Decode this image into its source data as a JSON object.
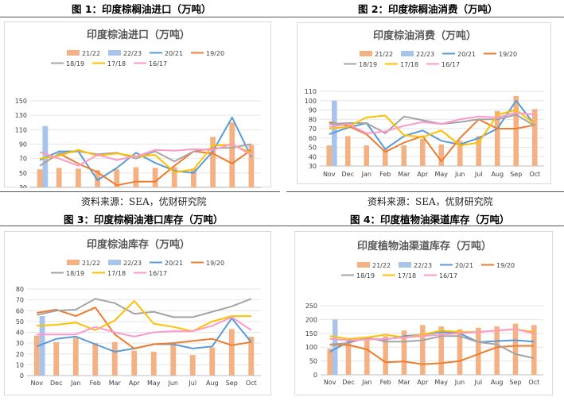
{
  "captions": {
    "fig1": "图 1：印度棕榈油进口（万吨）",
    "fig2": "图 2：印度棕榈油消费（万吨）",
    "fig3": "图 3：印度棕榈油港口库存（万吨）",
    "fig4": "图 4：印度植物油渠道库存（万吨）"
  },
  "sources": {
    "top_left": "资料来源：SEA，优财研究院",
    "top_right": "资料来源：SEA，优财研究院"
  },
  "chart_data": [
    {
      "type": "bar+line",
      "title": "印度棕油进口（万吨）",
      "categories": [
        "Nov",
        "Dec",
        "Jan",
        "Feb",
        "Mar",
        "Apr",
        "May",
        "Jun",
        "Jul",
        "Aug",
        "Sep",
        "Oct"
      ],
      "ylim": [
        30,
        150
      ],
      "yticks": [
        30,
        50,
        70,
        90,
        110,
        130,
        150
      ],
      "bars": [
        {
          "name": "21/22",
          "color": "#F4B183",
          "values": [
            55,
            57,
            56,
            54,
            55,
            58,
            57,
            58,
            56,
            100,
            120,
            89
          ]
        },
        {
          "name": "22/23",
          "color": "#A9C4EB",
          "values": [
            115,
            null,
            null,
            null,
            null,
            null,
            null,
            null,
            null,
            null,
            null,
            null
          ]
        }
      ],
      "lines": [
        {
          "name": "20/21",
          "color": "#5B9BD5",
          "values": [
            68,
            80,
            80,
            40,
            57,
            78,
            64,
            53,
            50,
            80,
            127,
            72
          ]
        },
        {
          "name": "19/20",
          "color": "#ED7D31",
          "values": [
            60,
            77,
            63,
            51,
            33,
            38,
            38,
            60,
            80,
            77,
            63,
            82
          ]
        },
        {
          "name": "18/19",
          "color": "#A5A5A5",
          "values": [
            60,
            77,
            80,
            76,
            78,
            70,
            80,
            66,
            80,
            84,
            85,
            90
          ]
        },
        {
          "name": "17/18",
          "color": "#FFC000",
          "values": [
            70,
            74,
            82,
            74,
            77,
            73,
            75,
            51,
            55,
            88,
            89,
            78
          ]
        },
        {
          "name": "16/17",
          "color": "#FF99CC",
          "values": [
            79,
            70,
            60,
            75,
            68,
            73,
            82,
            81,
            83,
            82,
            90,
            75
          ]
        }
      ]
    },
    {
      "type": "bar+line",
      "title": "印度棕油消费（万吨）",
      "categories": [
        "Nov",
        "Dec",
        "Jan",
        "Feb",
        "Mar",
        "Apr",
        "May",
        "Jun",
        "Jul",
        "Aug",
        "Sep",
        "Oct"
      ],
      "ylim": [
        30,
        110
      ],
      "yticks": [
        30,
        40,
        50,
        60,
        70,
        80,
        90,
        100,
        110
      ],
      "bars": [
        {
          "name": "21/22",
          "color": "#F4B183",
          "values": [
            52,
            62,
            52,
            48,
            52,
            59,
            53,
            57,
            62,
            89,
            105,
            91
          ]
        },
        {
          "name": "22/23",
          "color": "#A9C4EB",
          "values": [
            100,
            null,
            null,
            null,
            null,
            null,
            null,
            null,
            null,
            null,
            null,
            null
          ]
        }
      ],
      "lines": [
        {
          "name": "20/21",
          "color": "#5B9BD5",
          "values": [
            64,
            71,
            76,
            48,
            62,
            68,
            57,
            53,
            60,
            70,
            100,
            74
          ]
        },
        {
          "name": "19/20",
          "color": "#ED7D31",
          "values": [
            77,
            73,
            64,
            45,
            55,
            62,
            35,
            60,
            80,
            70,
            70,
            74
          ]
        },
        {
          "name": "18/19",
          "color": "#A5A5A5",
          "values": [
            75,
            76,
            76,
            65,
            83,
            79,
            75,
            77,
            80,
            80,
            85,
            73
          ]
        },
        {
          "name": "17/18",
          "color": "#FFC000",
          "values": [
            70,
            72,
            82,
            84,
            63,
            61,
            68,
            52,
            55,
            85,
            90,
            75
          ]
        },
        {
          "name": "16/17",
          "color": "#FF99CC",
          "values": [
            72,
            75,
            65,
            67,
            73,
            77,
            75,
            80,
            83,
            82,
            87,
            85
          ]
        }
      ]
    },
    {
      "type": "bar+line",
      "title": "印度棕油库存（万吨）",
      "categories": [
        "Nov",
        "Dec",
        "Jan",
        "Feb",
        "Mar",
        "Apr",
        "May",
        "Jun",
        "Jul",
        "Aug",
        "Sep",
        "Oct"
      ],
      "ylim": [
        0,
        80
      ],
      "yticks": [
        0,
        10,
        20,
        30,
        40,
        50,
        60,
        70,
        80
      ],
      "bars": [
        {
          "name": "21/22",
          "color": "#F4B183",
          "values": [
            37,
            31,
            35,
            30,
            31,
            23,
            22,
            29,
            19,
            26,
            43,
            36
          ]
        },
        {
          "name": "22/23",
          "color": "#A9C4EB",
          "values": [
            55,
            null,
            null,
            null,
            null,
            null,
            null,
            null,
            null,
            null,
            null,
            null
          ]
        }
      ],
      "lines": [
        {
          "name": "20/21",
          "color": "#5B9BD5",
          "values": [
            27,
            34,
            36,
            29,
            22,
            25,
            29,
            29,
            25,
            27,
            53,
            31
          ]
        },
        {
          "name": "19/20",
          "color": "#ED7D31",
          "values": [
            58,
            61,
            55,
            63,
            38,
            25,
            29,
            30,
            32,
            34,
            28,
            31
          ]
        },
        {
          "name": "18/19",
          "color": "#A5A5A5",
          "values": [
            56,
            60,
            61,
            71,
            67,
            57,
            59,
            54,
            54,
            59,
            64,
            71
          ]
        },
        {
          "name": "17/18",
          "color": "#FFC000",
          "values": [
            46,
            47,
            49,
            42,
            51,
            69,
            48,
            45,
            41,
            50,
            55,
            55
          ]
        },
        {
          "name": "16/17",
          "color": "#FF99CC",
          "values": [
            38,
            38,
            38,
            45,
            40,
            36,
            40,
            41,
            41,
            46,
            54,
            42
          ]
        }
      ]
    },
    {
      "type": "bar+line",
      "title": "印度植物油渠道库存（万吨）",
      "categories": [
        "Nov",
        "Dec",
        "Jan",
        "Feb",
        "Mar",
        "Apr",
        "May",
        "Jun",
        "Jul",
        "Aug",
        "Sep",
        "Oct"
      ],
      "ylim": [
        0,
        250
      ],
      "yticks": [
        0,
        50,
        100,
        150,
        200,
        250
      ],
      "bars": [
        {
          "name": "21/22",
          "color": "#F4B183",
          "values": [
            95,
            115,
            125,
            140,
            160,
            180,
            175,
            165,
            170,
            175,
            185,
            180
          ]
        },
        {
          "name": "22/23",
          "color": "#A9C4EB",
          "values": [
            200,
            null,
            null,
            null,
            null,
            null,
            null,
            null,
            null,
            null,
            null,
            null
          ]
        }
      ],
      "lines": [
        {
          "name": "20/21",
          "color": "#5B9BD5",
          "values": [
            83,
            120,
            130,
            128,
            140,
            145,
            155,
            150,
            118,
            122,
            125,
            120
          ]
        },
        {
          "name": "19/20",
          "color": "#ED7D31",
          "values": [
            108,
            108,
            92,
            45,
            48,
            38,
            42,
            50,
            75,
            100,
            105,
            105
          ]
        },
        {
          "name": "18/19",
          "color": "#A5A5A5",
          "values": [
            110,
            115,
            135,
            120,
            120,
            125,
            140,
            140,
            118,
            110,
            75,
            60
          ]
        },
        {
          "name": "17/18",
          "color": "#FFC000",
          "values": [
            140,
            130,
            135,
            145,
            135,
            145,
            160,
            155,
            155,
            160,
            165,
            155
          ]
        },
        {
          "name": "16/17",
          "color": "#FF99CC",
          "values": [
            130,
            125,
            128,
            130,
            135,
            140,
            145,
            150,
            155,
            160,
            165,
            150
          ]
        }
      ]
    }
  ]
}
